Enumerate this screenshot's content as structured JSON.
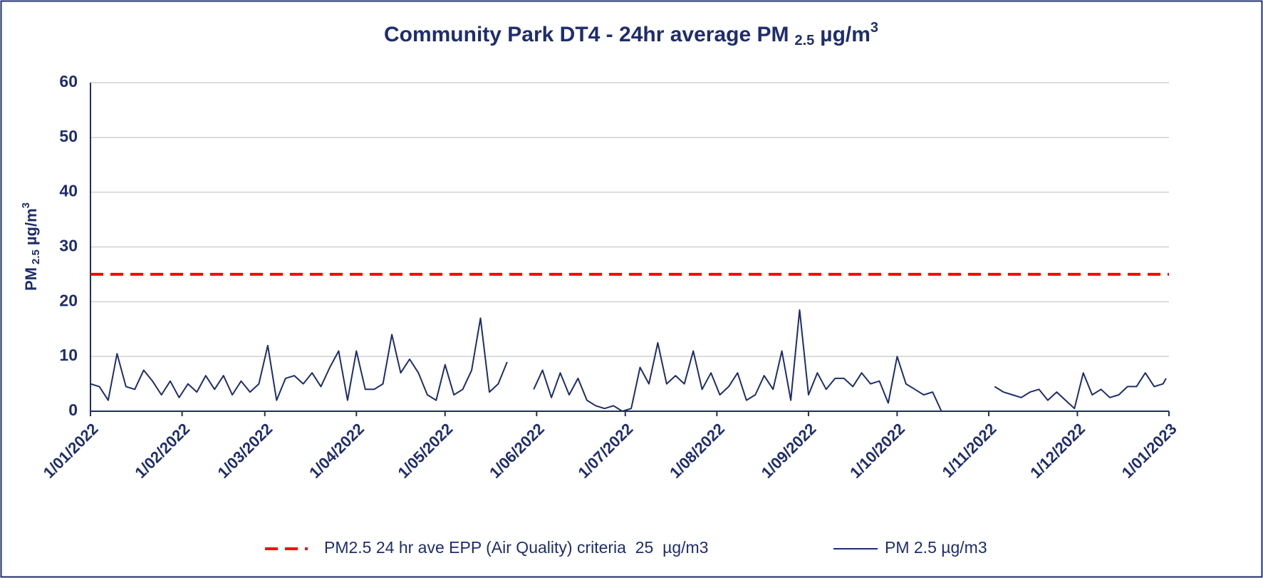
{
  "chart_data": {
    "type": "line",
    "title": {
      "text": "Community Park DT4 - 24hr average PM",
      "subscript": "2.5",
      "unit": "µg/m",
      "superscript": "3"
    },
    "y_label": {
      "text": "PM",
      "subscript": "2.5",
      "unit": "µg/m",
      "superscript": "3"
    },
    "x": [
      "1/01/2022",
      "4/01/2022",
      "7/01/2022",
      "10/01/2022",
      "13/01/2022",
      "16/01/2022",
      "19/01/2022",
      "22/01/2022",
      "25/01/2022",
      "28/01/2022",
      "31/01/2022",
      "3/02/2022",
      "6/02/2022",
      "9/02/2022",
      "12/02/2022",
      "15/02/2022",
      "18/02/2022",
      "21/02/2022",
      "24/02/2022",
      "27/02/2022",
      "2/03/2022",
      "5/03/2022",
      "8/03/2022",
      "11/03/2022",
      "14/03/2022",
      "17/03/2022",
      "20/03/2022",
      "23/03/2022",
      "26/03/2022",
      "29/03/2022",
      "1/04/2022",
      "4/04/2022",
      "7/04/2022",
      "10/04/2022",
      "13/04/2022",
      "16/04/2022",
      "19/04/2022",
      "22/04/2022",
      "25/04/2022",
      "28/04/2022",
      "1/05/2022",
      "4/05/2022",
      "7/05/2022",
      "10/05/2022",
      "13/05/2022",
      "16/05/2022",
      "19/05/2022",
      "22/05/2022",
      "25/05/2022",
      "28/05/2022",
      "31/05/2022",
      "3/06/2022",
      "6/06/2022",
      "9/06/2022",
      "12/06/2022",
      "15/06/2022",
      "18/06/2022",
      "21/06/2022",
      "24/06/2022",
      "27/06/2022",
      "30/06/2022",
      "3/07/2022",
      "6/07/2022",
      "9/07/2022",
      "12/07/2022",
      "15/07/2022",
      "18/07/2022",
      "21/07/2022",
      "24/07/2022",
      "27/07/2022",
      "30/07/2022",
      "2/08/2022",
      "5/08/2022",
      "8/08/2022",
      "11/08/2022",
      "14/08/2022",
      "17/08/2022",
      "20/08/2022",
      "23/08/2022",
      "26/08/2022",
      "29/08/2022",
      "1/09/2022",
      "4/09/2022",
      "7/09/2022",
      "10/09/2022",
      "13/09/2022",
      "16/09/2022",
      "19/09/2022",
      "22/09/2022",
      "25/09/2022",
      "28/09/2022",
      "1/10/2022",
      "4/10/2022",
      "7/10/2022",
      "10/10/2022",
      "13/10/2022",
      "16/10/2022",
      "19/10/2022",
      "22/10/2022",
      "25/10/2022",
      "28/10/2022",
      "31/10/2022",
      "3/11/2022",
      "6/11/2022",
      "9/11/2022",
      "12/11/2022",
      "15/11/2022",
      "18/11/2022",
      "21/11/2022",
      "24/11/2022",
      "27/11/2022",
      "30/11/2022",
      "3/12/2022",
      "6/12/2022",
      "9/12/2022",
      "12/12/2022",
      "15/12/2022",
      "18/12/2022",
      "21/12/2022",
      "24/12/2022",
      "27/12/2022",
      "30/12/2022",
      "31/12/2022"
    ],
    "series": [
      {
        "name": "PM 2.5 µg/m3",
        "color": "#1f2d6b",
        "values": [
          5,
          4.5,
          2,
          10.5,
          4.5,
          4,
          7.5,
          5.5,
          3,
          5.5,
          2.5,
          5,
          3.5,
          6.5,
          4,
          6.5,
          3,
          5.5,
          3.5,
          5,
          12,
          2,
          6,
          6.5,
          5,
          7,
          4.5,
          8,
          11,
          2,
          11,
          4,
          4,
          5,
          14,
          7,
          9.5,
          7,
          3,
          2,
          8.5,
          3,
          4,
          7.5,
          17,
          3.5,
          5,
          9,
          null,
          null,
          4,
          7.5,
          2.5,
          7,
          3,
          6,
          2,
          1,
          0.5,
          1,
          0,
          0.5,
          8,
          5,
          12.5,
          5,
          6.5,
          5,
          11,
          4,
          7,
          3,
          4.5,
          7,
          2,
          3,
          6.5,
          4,
          11,
          2,
          18.5,
          3,
          7,
          4,
          6,
          6,
          4.5,
          7,
          5,
          5.5,
          1.5,
          10,
          5,
          4,
          3,
          3.5,
          0,
          null,
          null,
          null,
          null,
          null,
          4.5,
          3.5,
          3,
          2.5,
          3.5,
          4,
          2,
          3.5,
          2,
          0.5,
          7,
          3,
          4,
          2.5,
          3,
          4.5,
          4.5,
          7,
          4.5,
          5,
          6
        ]
      }
    ],
    "threshold": {
      "name": "PM2.5 24 hr ave EPP (Air Quality) criteria  25  µg/m3",
      "value": 25,
      "color": "#ff0000"
    },
    "xlim": [
      "1/01/2022",
      "1/01/2023"
    ],
    "xticks": [
      "1/01/2022",
      "1/02/2022",
      "1/03/2022",
      "1/04/2022",
      "1/05/2022",
      "1/06/2022",
      "1/07/2022",
      "1/08/2022",
      "1/09/2022",
      "1/10/2022",
      "1/11/2022",
      "1/12/2022",
      "1/01/2023"
    ],
    "ylim": [
      0,
      60
    ],
    "yticks": [
      0,
      10,
      20,
      30,
      40,
      50,
      60
    ],
    "grid": true,
    "legend": "bottom"
  }
}
